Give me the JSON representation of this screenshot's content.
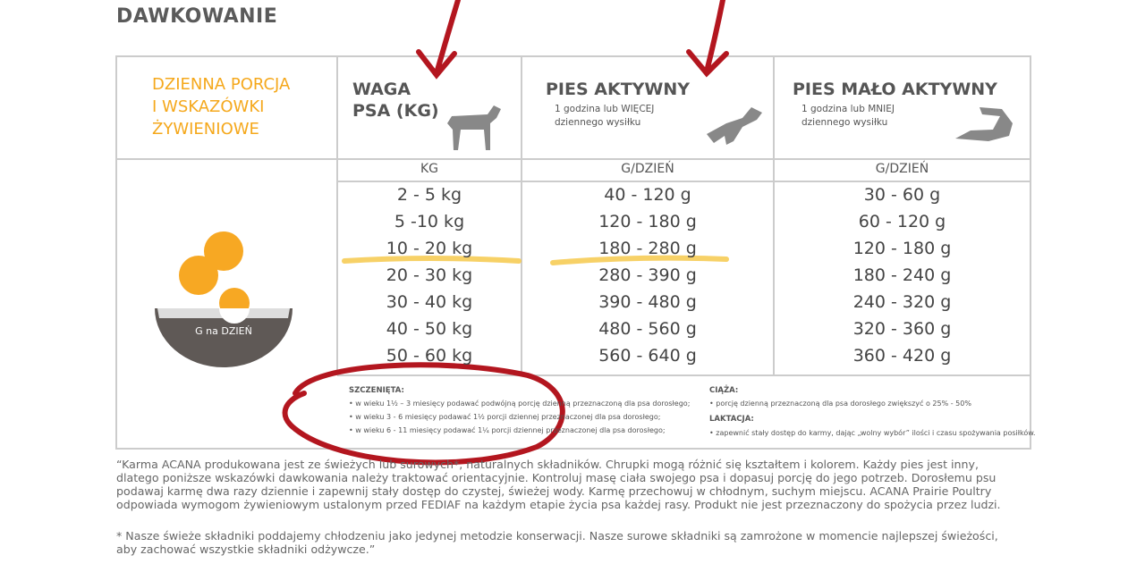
{
  "title": "DAWKOWANIE",
  "table": {
    "corner_lines": [
      "DZIENNA PORCJA",
      "I WSKAZÓWKI",
      "ŻYWIENIOWE"
    ],
    "columns": [
      {
        "title_lines": [
          "WAGA",
          "PSA (KG)"
        ],
        "sub_lines": [],
        "unit": "KG"
      },
      {
        "title_lines": [
          "PIES AKTYWNY"
        ],
        "sub_lines": [
          "1 godzina lub WIĘCEJ",
          "dziennego wysiłku"
        ],
        "unit": "G/DZIEŃ"
      },
      {
        "title_lines": [
          "PIES MAŁO AKTYWNY"
        ],
        "sub_lines": [
          "1 godzina lub MNIEJ",
          "dziennego wysiłku"
        ],
        "unit": "G/DZIEŃ"
      }
    ],
    "rows": [
      [
        "2 - 5 kg",
        "40 - 120 g",
        "30 - 60 g"
      ],
      [
        "5 -10 kg",
        "120 - 180 g",
        "60 - 120 g"
      ],
      [
        "10 - 20 kg",
        "180 - 280 g",
        "120 - 180 g"
      ],
      [
        "20 - 30 kg",
        "280 - 390 g",
        "180 - 240 g"
      ],
      [
        "30 - 40 kg",
        "390 - 480 g",
        "240 - 320 g"
      ],
      [
        "40 - 50 kg",
        "480 - 560 g",
        "320 - 360 g"
      ],
      [
        "50 - 60 kg",
        "560 - 640 g",
        "360 - 420 g"
      ]
    ],
    "bowl_label": "G na DZIEŃ"
  },
  "notes": {
    "puppies": {
      "title": "SZCZENIĘTA:",
      "items": [
        "• w wieku 1½ – 3 miesięcy podawać podwójną porcję dzienną przeznaczoną dla psa dorosłego;",
        "• w wieku 3 - 6 miesięcy podawać 1½ porcji dziennej przeznaczonej dla psa dorosłego;",
        "• w wieku 6 - 11 miesięcy podawać 1¼ porcji dziennej przeznaczonej dla psa dorosłego;"
      ]
    },
    "pregnancy": {
      "title": "CIĄŻA:",
      "items": [
        "• porcję dzienną przeznaczoną dla psa dorosłego zwiększyć o 25% - 50%"
      ]
    },
    "lactation": {
      "title": "LAKTACJA:",
      "items": [
        "• zapewnić stały dostęp do karmy, dając „wolny wybór” ilości i czasu spożywania posiłków."
      ]
    }
  },
  "footer": {
    "paragraph_1": [
      "“Karma ACANA produkowana jest ze świeżych lub surowych*, naturalnych składników. Chrupki mogą różnić się kształtem i kolorem. Każdy pies jest inny,",
      "dlatego poniższe wskazówki dawkowania należy traktować orientacyjnie. Kontroluj masę ciała swojego psa i dopasuj porcję do jego potrzeb. Dorosłemu psu",
      "podawaj karmę dwa razy dziennie i zapewnij stały dostęp do czystej, świeżej wody. Karmę przechowuj w chłodnym, suchym miejscu. ACANA Prairie Poultry",
      "odpowiada wymogom żywieniowym ustalonym przed FEDIAF na każdym etapie życia psa każdej rasy. Produkt nie jest przeznaczony do spożycia przez ludzi."
    ],
    "paragraph_2": [
      "* Nasze świeże składniki poddajemy chłodzeniu jako jedynej metodzie konserwacji. Nasze surowe składniki są zamrożone w momencie najlepszej świeżości,",
      "aby zachować wszystkie składniki odżywcze.”"
    ]
  }
}
